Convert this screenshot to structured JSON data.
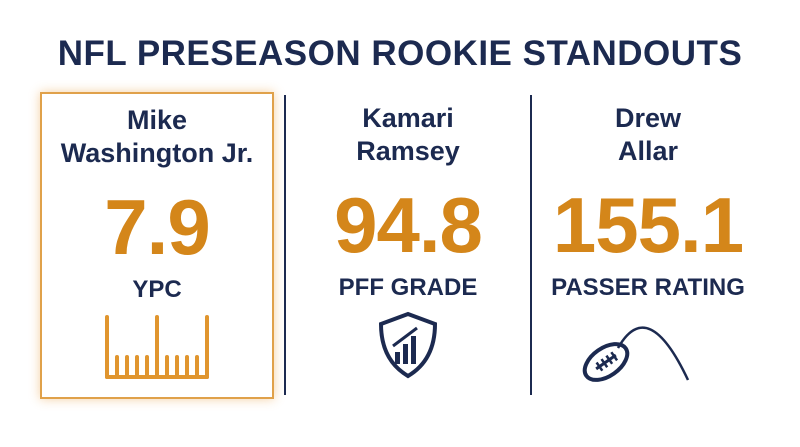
{
  "header": {
    "title": "NFL PRESEASON ROOKIE STANDOUTS"
  },
  "cards": [
    {
      "name_lines": [
        "Mike",
        "Washington Jr."
      ],
      "value": 7.9,
      "label": "YPC"
    },
    {
      "name_lines": [
        "Kamari",
        "Ramsey"
      ],
      "value": 94.8,
      "label": "PFF GRADE"
    },
    {
      "name_lines": [
        "Drew",
        "Allar"
      ],
      "value": 155.1,
      "label": "PASSER RATING"
    }
  ]
}
